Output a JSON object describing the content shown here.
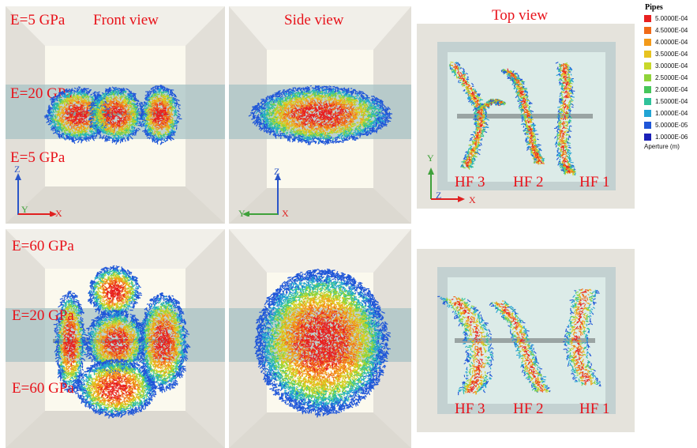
{
  "labels": {
    "front_view": "Front view",
    "side_view": "Side view",
    "top_view": "Top view",
    "e5_top": "E=5 GPa",
    "e20_top": "E=20 GPa",
    "e5_bottom": "E=5 GPa",
    "e60_top": "E=60 GPa",
    "e20_bottom": "E=20 GPa",
    "e60_bottom": "E=60 GPa",
    "hf3": "HF 3",
    "hf2": "HF 2",
    "hf1": "HF 1",
    "hf3_b": "HF 3",
    "hf2_b": "HF 2",
    "hf1_b": "HF 1"
  },
  "axes": {
    "z": "Z",
    "y": "Y",
    "x": "X"
  },
  "legend": {
    "title": "Pipes",
    "values": [
      "5.0000E-04",
      "4.5000E-04",
      "4.0000E-04",
      "3.5000E-04",
      "3.0000E-04",
      "2.5000E-04",
      "2.0000E-04",
      "1.5000E-04",
      "1.0000E-04",
      "5.0000E-05",
      "1.0000E-06"
    ],
    "colors": [
      "#e82020",
      "#f06a18",
      "#f39a1a",
      "#e7c320",
      "#c9d82a",
      "#8fd43a",
      "#46c65a",
      "#2fc29a",
      "#22a4d4",
      "#1f56d8",
      "#1a20b8"
    ],
    "unit_label": "Aperture (m)"
  },
  "colors": {
    "label_red": "#e8121a",
    "axis_blue": "#2a55c8",
    "axis_red": "#e02020",
    "axis_green": "#3fa13a"
  }
}
